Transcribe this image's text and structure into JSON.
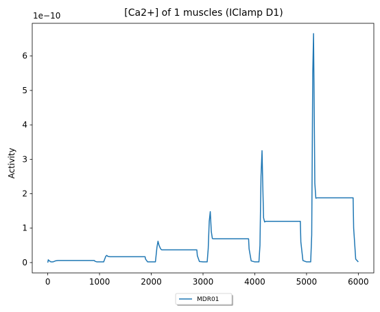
{
  "chart_data": {
    "type": "line",
    "title": "[Ca2+] of 1 muscles (IClamp D1)",
    "xlabel": "",
    "ylabel": "Activity",
    "offset_text": "1e−10",
    "xlim": [
      -300,
      6300
    ],
    "ylim": [
      -0.3,
      6.95
    ],
    "x_ticks": [
      0,
      1000,
      2000,
      3000,
      4000,
      5000,
      6000
    ],
    "x_tick_labels": [
      "0",
      "1000",
      "2000",
      "3000",
      "4000",
      "5000",
      "6000"
    ],
    "y_ticks": [
      0,
      1,
      2,
      3,
      4,
      5,
      6
    ],
    "y_tick_labels": [
      "0",
      "1",
      "2",
      "3",
      "4",
      "5",
      "6"
    ],
    "grid": false,
    "legend_position": "below",
    "series": [
      {
        "name": "MDR01",
        "color": "#1f77b4",
        "x": [
          0,
          10,
          30,
          60,
          100,
          150,
          200,
          500,
          900,
          910,
          950,
          1000,
          1080,
          1120,
          1140,
          1160,
          1200,
          1300,
          1500,
          1880,
          1890,
          1930,
          2000,
          2080,
          2110,
          2130,
          2150,
          2180,
          2200,
          2300,
          2500,
          2880,
          2890,
          2930,
          3000,
          3080,
          3100,
          3120,
          3140,
          3160,
          3180,
          3200,
          3300,
          3500,
          3880,
          3890,
          3930,
          4000,
          4080,
          4100,
          4120,
          4140,
          4155,
          4170,
          4190,
          4210,
          4300,
          4500,
          4880,
          4890,
          4930,
          5000,
          5080,
          5100,
          5120,
          5135,
          5145,
          5160,
          5180,
          5200,
          5300,
          5500,
          5900,
          5910,
          5950,
          6000
        ],
        "y": [
          0.0,
          0.08,
          0.05,
          0.02,
          0.02,
          0.05,
          0.06,
          0.06,
          0.06,
          0.04,
          0.02,
          0.02,
          0.02,
          0.18,
          0.21,
          0.18,
          0.17,
          0.17,
          0.17,
          0.17,
          0.1,
          0.02,
          0.02,
          0.02,
          0.45,
          0.62,
          0.5,
          0.4,
          0.37,
          0.37,
          0.37,
          0.37,
          0.2,
          0.03,
          0.02,
          0.02,
          0.4,
          1.2,
          1.48,
          0.9,
          0.7,
          0.69,
          0.69,
          0.69,
          0.69,
          0.4,
          0.05,
          0.02,
          0.02,
          0.5,
          2.5,
          3.25,
          2.2,
          1.3,
          1.18,
          1.2,
          1.2,
          1.2,
          1.2,
          0.6,
          0.06,
          0.02,
          0.02,
          0.8,
          5.5,
          6.65,
          5.0,
          2.3,
          1.87,
          1.88,
          1.88,
          1.88,
          1.88,
          1.0,
          0.1,
          0.02
        ]
      }
    ]
  }
}
